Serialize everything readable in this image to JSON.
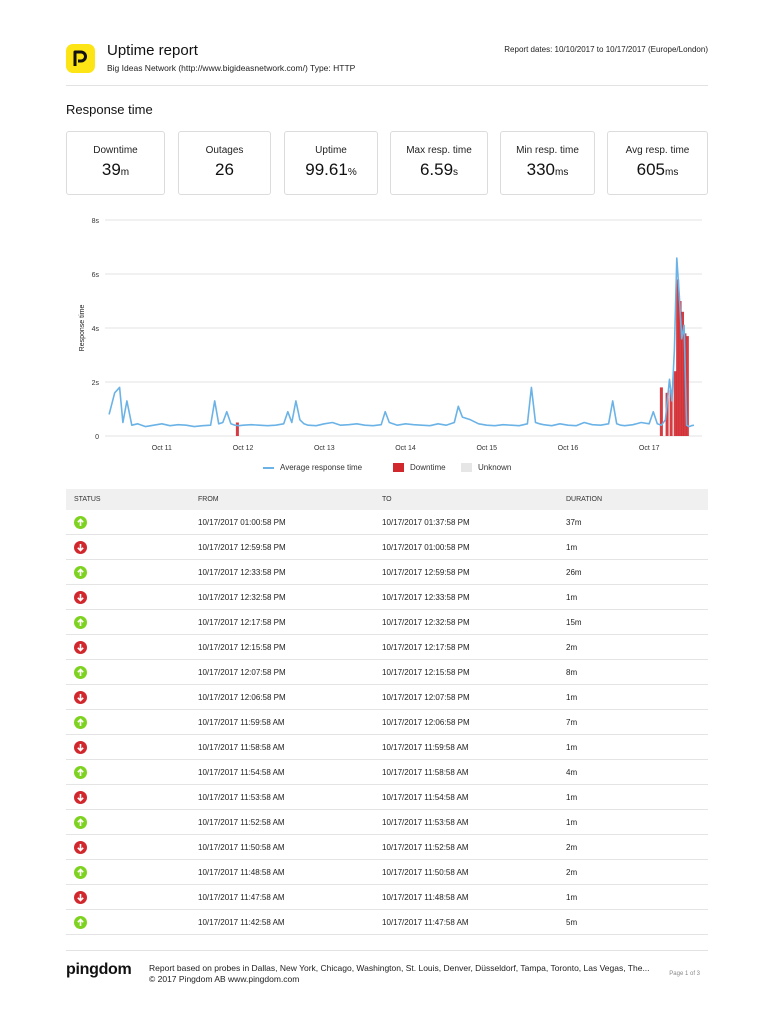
{
  "header": {
    "title": "Uptime report",
    "subtitle": "Big Ideas Network (http://www.bigideasnetwork.com/) Type: HTTP",
    "report_dates": "Report dates: 10/10/2017 to 10/17/2017 (Europe/London)",
    "logo_icon": "pingdom-p-logo-icon",
    "logo_color": "#fde414"
  },
  "section_title": "Response time",
  "stats": [
    {
      "label": "Downtime",
      "value": "39",
      "unit": "m"
    },
    {
      "label": "Outages",
      "value": "26",
      "unit": ""
    },
    {
      "label": "Uptime",
      "value": "99.61",
      "unit": "%"
    },
    {
      "label": "Max resp. time",
      "value": "6.59",
      "unit": "s"
    },
    {
      "label": "Min resp. time",
      "value": "330",
      "unit": "ms"
    },
    {
      "label": "Avg resp. time",
      "value": "605",
      "unit": "ms"
    }
  ],
  "chart_data": {
    "type": "line",
    "ylabel": "Response time",
    "ylim": [
      0,
      8
    ],
    "yticks": [
      {
        "v": 0,
        "label": "0"
      },
      {
        "v": 2,
        "label": "2s"
      },
      {
        "v": 4,
        "label": "4s"
      },
      {
        "v": 6,
        "label": "6s"
      },
      {
        "v": 8,
        "label": "8s"
      }
    ],
    "xlim": [
      10.3,
      17.65
    ],
    "xticks": [
      {
        "v": 11,
        "label": "Oct 11"
      },
      {
        "v": 12,
        "label": "Oct 12"
      },
      {
        "v": 13,
        "label": "Oct 13"
      },
      {
        "v": 14,
        "label": "Oct 14"
      },
      {
        "v": 15,
        "label": "Oct 15"
      },
      {
        "v": 16,
        "label": "Oct 16"
      },
      {
        "v": 17,
        "label": "Oct 17"
      }
    ],
    "grid": true,
    "legend_position": "bottom",
    "series": [
      {
        "name": "Average response time",
        "color": "#6bb3e6",
        "x": [
          10.35,
          10.42,
          10.48,
          10.52,
          10.57,
          10.63,
          10.7,
          10.8,
          10.9,
          11.0,
          11.1,
          11.2,
          11.3,
          11.4,
          11.5,
          11.6,
          11.65,
          11.7,
          11.75,
          11.8,
          11.85,
          11.9,
          11.95,
          12.0,
          12.1,
          12.2,
          12.3,
          12.4,
          12.5,
          12.55,
          12.6,
          12.65,
          12.7,
          12.75,
          12.8,
          12.9,
          13.0,
          13.1,
          13.2,
          13.3,
          13.4,
          13.5,
          13.6,
          13.7,
          13.75,
          13.8,
          13.9,
          14.0,
          14.1,
          14.2,
          14.3,
          14.4,
          14.5,
          14.6,
          14.65,
          14.7,
          14.8,
          14.9,
          15.0,
          15.1,
          15.2,
          15.3,
          15.4,
          15.5,
          15.55,
          15.6,
          15.65,
          15.7,
          15.8,
          15.9,
          16.0,
          16.1,
          16.2,
          16.3,
          16.4,
          16.5,
          16.55,
          16.6,
          16.65,
          16.7,
          16.8,
          16.9,
          17.0,
          17.05,
          17.1,
          17.15,
          17.2,
          17.25,
          17.28,
          17.31,
          17.34,
          17.37,
          17.4,
          17.43,
          17.46,
          17.49,
          17.52,
          17.55
        ],
        "values": [
          0.8,
          1.6,
          1.8,
          0.5,
          1.3,
          0.4,
          0.45,
          0.35,
          0.4,
          0.45,
          0.38,
          0.42,
          0.4,
          0.35,
          0.38,
          0.4,
          1.3,
          0.45,
          0.5,
          0.9,
          0.45,
          0.4,
          0.38,
          0.4,
          0.42,
          0.4,
          0.38,
          0.4,
          0.45,
          0.9,
          0.5,
          1.3,
          0.6,
          0.45,
          0.4,
          0.38,
          0.45,
          0.5,
          0.4,
          0.42,
          0.45,
          0.4,
          0.38,
          0.42,
          0.9,
          0.5,
          0.4,
          0.45,
          0.42,
          0.4,
          0.38,
          0.45,
          0.4,
          0.5,
          1.1,
          0.7,
          0.6,
          0.45,
          0.4,
          0.38,
          0.42,
          0.4,
          0.38,
          0.45,
          1.8,
          0.5,
          0.45,
          0.42,
          0.38,
          0.45,
          0.4,
          0.38,
          0.5,
          0.42,
          0.4,
          0.45,
          1.3,
          0.45,
          0.4,
          0.38,
          0.42,
          0.5,
          0.45,
          0.9,
          0.45,
          0.4,
          0.6,
          2.1,
          1.3,
          3.2,
          6.59,
          5.2,
          3.6,
          4.1,
          0.4,
          0.35,
          0.38,
          0.4
        ]
      },
      {
        "name": "Downtime",
        "color": "#d0282d",
        "bars": [
          {
            "x": 17.15,
            "h": 1.8
          },
          {
            "x": 17.22,
            "h": 1.6
          },
          {
            "x": 17.27,
            "h": 1.7
          },
          {
            "x": 17.32,
            "h": 2.4
          },
          {
            "x": 17.35,
            "h": 5.8
          },
          {
            "x": 17.38,
            "h": 5.0
          },
          {
            "x": 17.41,
            "h": 4.6
          },
          {
            "x": 17.44,
            "h": 3.8
          },
          {
            "x": 17.47,
            "h": 3.7
          },
          {
            "x": 11.93,
            "h": 0.5
          }
        ]
      },
      {
        "name": "Unknown",
        "color": "#e6e6e6"
      }
    ]
  },
  "table": {
    "headers": [
      "STATUS",
      "FROM",
      "TO",
      "DURATION"
    ],
    "rows": [
      {
        "status": "up",
        "from": "10/17/2017 01:00:58 PM",
        "to": "10/17/2017 01:37:58 PM",
        "duration": "37m"
      },
      {
        "status": "down",
        "from": "10/17/2017 12:59:58 PM",
        "to": "10/17/2017 01:00:58 PM",
        "duration": "1m"
      },
      {
        "status": "up",
        "from": "10/17/2017 12:33:58 PM",
        "to": "10/17/2017 12:59:58 PM",
        "duration": "26m"
      },
      {
        "status": "down",
        "from": "10/17/2017 12:32:58 PM",
        "to": "10/17/2017 12:33:58 PM",
        "duration": "1m"
      },
      {
        "status": "up",
        "from": "10/17/2017 12:17:58 PM",
        "to": "10/17/2017 12:32:58 PM",
        "duration": "15m"
      },
      {
        "status": "down",
        "from": "10/17/2017 12:15:58 PM",
        "to": "10/17/2017 12:17:58 PM",
        "duration": "2m"
      },
      {
        "status": "up",
        "from": "10/17/2017 12:07:58 PM",
        "to": "10/17/2017 12:15:58 PM",
        "duration": "8m"
      },
      {
        "status": "down",
        "from": "10/17/2017 12:06:58 PM",
        "to": "10/17/2017 12:07:58 PM",
        "duration": "1m"
      },
      {
        "status": "up",
        "from": "10/17/2017 11:59:58 AM",
        "to": "10/17/2017 12:06:58 PM",
        "duration": "7m"
      },
      {
        "status": "down",
        "from": "10/17/2017 11:58:58 AM",
        "to": "10/17/2017 11:59:58 AM",
        "duration": "1m"
      },
      {
        "status": "up",
        "from": "10/17/2017 11:54:58 AM",
        "to": "10/17/2017 11:58:58 AM",
        "duration": "4m"
      },
      {
        "status": "down",
        "from": "10/17/2017 11:53:58 AM",
        "to": "10/17/2017 11:54:58 AM",
        "duration": "1m"
      },
      {
        "status": "up",
        "from": "10/17/2017 11:52:58 AM",
        "to": "10/17/2017 11:53:58 AM",
        "duration": "1m"
      },
      {
        "status": "down",
        "from": "10/17/2017 11:50:58 AM",
        "to": "10/17/2017 11:52:58 AM",
        "duration": "2m"
      },
      {
        "status": "up",
        "from": "10/17/2017 11:48:58 AM",
        "to": "10/17/2017 11:50:58 AM",
        "duration": "2m"
      },
      {
        "status": "down",
        "from": "10/17/2017 11:47:58 AM",
        "to": "10/17/2017 11:48:58 AM",
        "duration": "1m"
      },
      {
        "status": "up",
        "from": "10/17/2017 11:42:58 AM",
        "to": "10/17/2017 11:47:58 AM",
        "duration": "5m"
      }
    ]
  },
  "status_colors": {
    "up": "#7ed321",
    "down": "#d0282d"
  },
  "footer": {
    "brand": "pingdom",
    "line1": "Report based on probes in Dallas, New York, Chicago, Washington, St. Louis, Denver, Düsseldorf, Tampa, Toronto, Las Vegas, The...",
    "line2": "© 2017 Pingdom AB www.pingdom.com",
    "page": "Page 1 of 3"
  }
}
